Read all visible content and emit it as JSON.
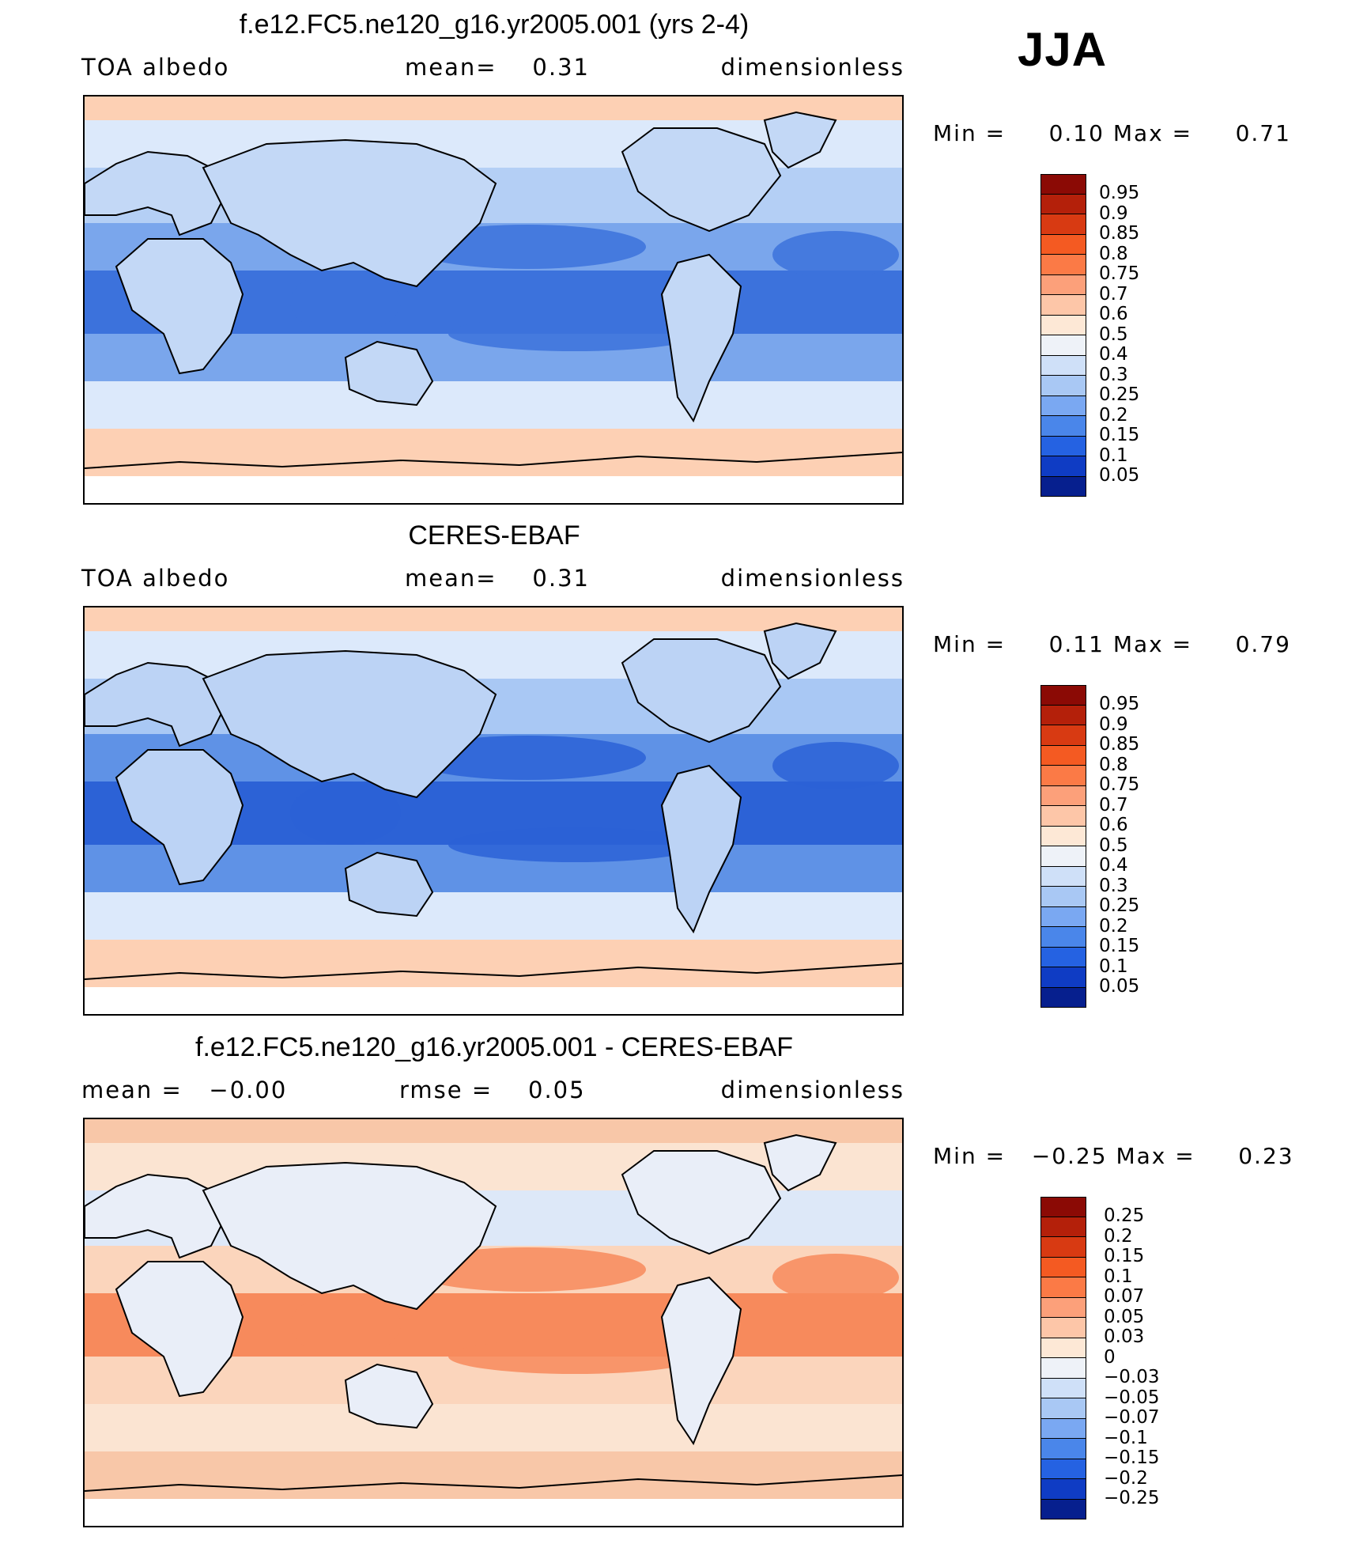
{
  "season": "JJA",
  "chart_data": [
    {
      "type": "heatmap",
      "title": "f.e12.FC5.ne120_g16.yr2005.001 (yrs 2-4)",
      "variable": "TOA albedo",
      "stat_label": "mean=",
      "stat_value": "0.31",
      "units": "dimensionless",
      "min_label": "Min =",
      "min_value": "0.10",
      "max_label": "Max =",
      "max_value": "0.71",
      "colorbar_levels": [
        "0.95",
        "0.9",
        "0.85",
        "0.8",
        "0.75",
        "0.7",
        "0.6",
        "0.5",
        "0.4",
        "0.3",
        "0.25",
        "0.2",
        "0.15",
        "0.1",
        "0.05"
      ],
      "colorbar_colors": [
        "#8b0a05",
        "#b4200a",
        "#d83a12",
        "#f45a22",
        "#fb7a46",
        "#fca07a",
        "#fdc6a8",
        "#fde8d6",
        "#eef2f8",
        "#cfe0f8",
        "#a9c8f4",
        "#7aa8f2",
        "#4a86ea",
        "#2562e2",
        "#0f3cc4",
        "#061f8e"
      ],
      "region_fill": {
        "polar": "#fdd0b4",
        "extratropics": "#dce9fb",
        "midlat": "#b4cff5",
        "tropics": "#7aa6ec",
        "deep": "#3c72dc",
        "land": "#c3d8f6"
      }
    },
    {
      "type": "heatmap",
      "title": "CERES-EBAF",
      "variable": "TOA albedo",
      "stat_label": "mean=",
      "stat_value": "0.31",
      "units": "dimensionless",
      "min_label": "Min =",
      "min_value": "0.11",
      "max_label": "Max =",
      "max_value": "0.79",
      "colorbar_levels": [
        "0.95",
        "0.9",
        "0.85",
        "0.8",
        "0.75",
        "0.7",
        "0.6",
        "0.5",
        "0.4",
        "0.3",
        "0.25",
        "0.2",
        "0.15",
        "0.1",
        "0.05"
      ],
      "colorbar_colors": [
        "#8b0a05",
        "#b4200a",
        "#d83a12",
        "#f45a22",
        "#fb7a46",
        "#fca07a",
        "#fdc6a8",
        "#fde8d6",
        "#eef2f8",
        "#cfe0f8",
        "#a9c8f4",
        "#7aa8f2",
        "#4a86ea",
        "#2562e2",
        "#0f3cc4",
        "#061f8e"
      ],
      "region_fill": {
        "polar": "#fdd0b4",
        "extratropics": "#dce9fb",
        "midlat": "#a9c8f4",
        "tropics": "#5f92e6",
        "deep": "#2c62d6",
        "land": "#bcd3f5"
      }
    },
    {
      "type": "heatmap",
      "title": "f.e12.FC5.ne120_g16.yr2005.001 - CERES-EBAF",
      "variable": "mean =",
      "variable_value": "−0.00",
      "stat_label": "rmse =",
      "stat_value": "0.05",
      "units": "dimensionless",
      "min_label": "Min =",
      "min_value": "−0.25",
      "max_label": "Max =",
      "max_value": "0.23",
      "colorbar_levels": [
        "0.25",
        "0.2",
        "0.15",
        "0.1",
        "0.07",
        "0.05",
        "0.03",
        "0",
        "−0.03",
        "−0.05",
        "−0.07",
        "−0.1",
        "−0.15",
        "−0.2",
        "−0.25"
      ],
      "colorbar_colors": [
        "#8b0a05",
        "#b4200a",
        "#d83a12",
        "#f45a22",
        "#fb7a46",
        "#fca07a",
        "#fdc6a8",
        "#fde8d6",
        "#eef2f8",
        "#cfe0f8",
        "#a9c8f4",
        "#7aa8f2",
        "#4a86ea",
        "#2562e2",
        "#0f3cc4",
        "#061f8e"
      ],
      "region_fill": {
        "polar": "#f8c7a8",
        "extratropics": "#fbe4d2",
        "midlat": "#dde8f8",
        "tropics": "#fbd5bc",
        "deep": "#f78a5c",
        "land": "#e9eef8"
      }
    }
  ]
}
